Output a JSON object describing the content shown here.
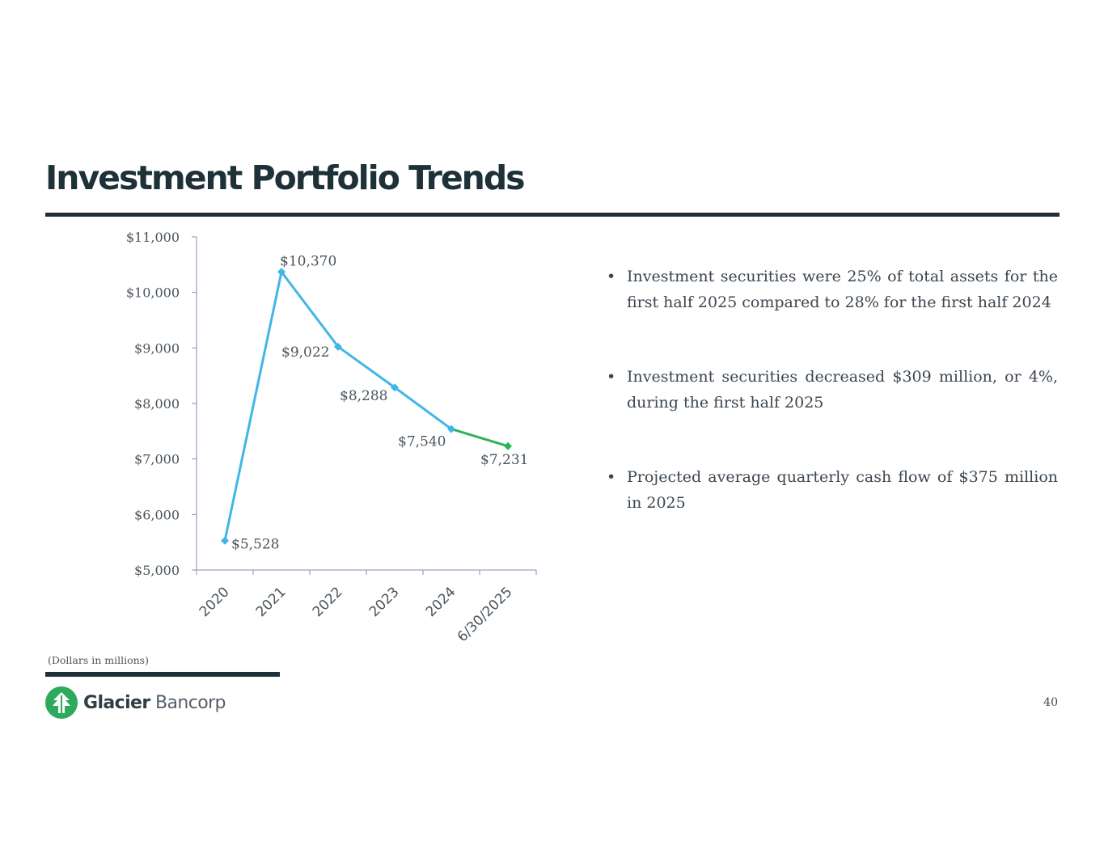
{
  "title": "Investment Portfolio Trends",
  "bullets": [
    "Investment securities were 25% of total assets for the first half 2025 compared to 28% for the first half 2024",
    "Investment securities decreased $309 million, or 4%, during the first half 2025",
    "Projected average quarterly cash flow of $375 million in 2025"
  ],
  "bullet_glyph": "•",
  "footnote": "(Dollars in millions)",
  "logo": {
    "name_strong": "Glacier",
    "name_light": "Bancorp",
    "icon": "glacier-tree-icon",
    "color": "#2eaa5c"
  },
  "page_number": "40",
  "chart_data": {
    "type": "line",
    "categories": [
      "2020",
      "2021",
      "2022",
      "2023",
      "2024",
      "6/30/2025"
    ],
    "values": [
      5528,
      10370,
      9022,
      8288,
      7540,
      7231
    ],
    "data_labels": [
      "$5,528",
      "$10,370",
      "$9,022",
      "$8,288",
      "$7,540",
      "$7,231"
    ],
    "y_ticks": [
      5000,
      6000,
      7000,
      8000,
      9000,
      10000,
      11000
    ],
    "y_tick_labels": [
      "$5,000",
      "$6,000",
      "$7,000",
      "$8,000",
      "$9,000",
      "$10,000",
      "$11,000"
    ],
    "ylim": [
      5000,
      11000
    ],
    "grid": false,
    "colors": {
      "primary": "#41b6e6",
      "highlight": "#2db35a",
      "axis": "#8e8ab8"
    },
    "highlight_last_segment": true
  }
}
